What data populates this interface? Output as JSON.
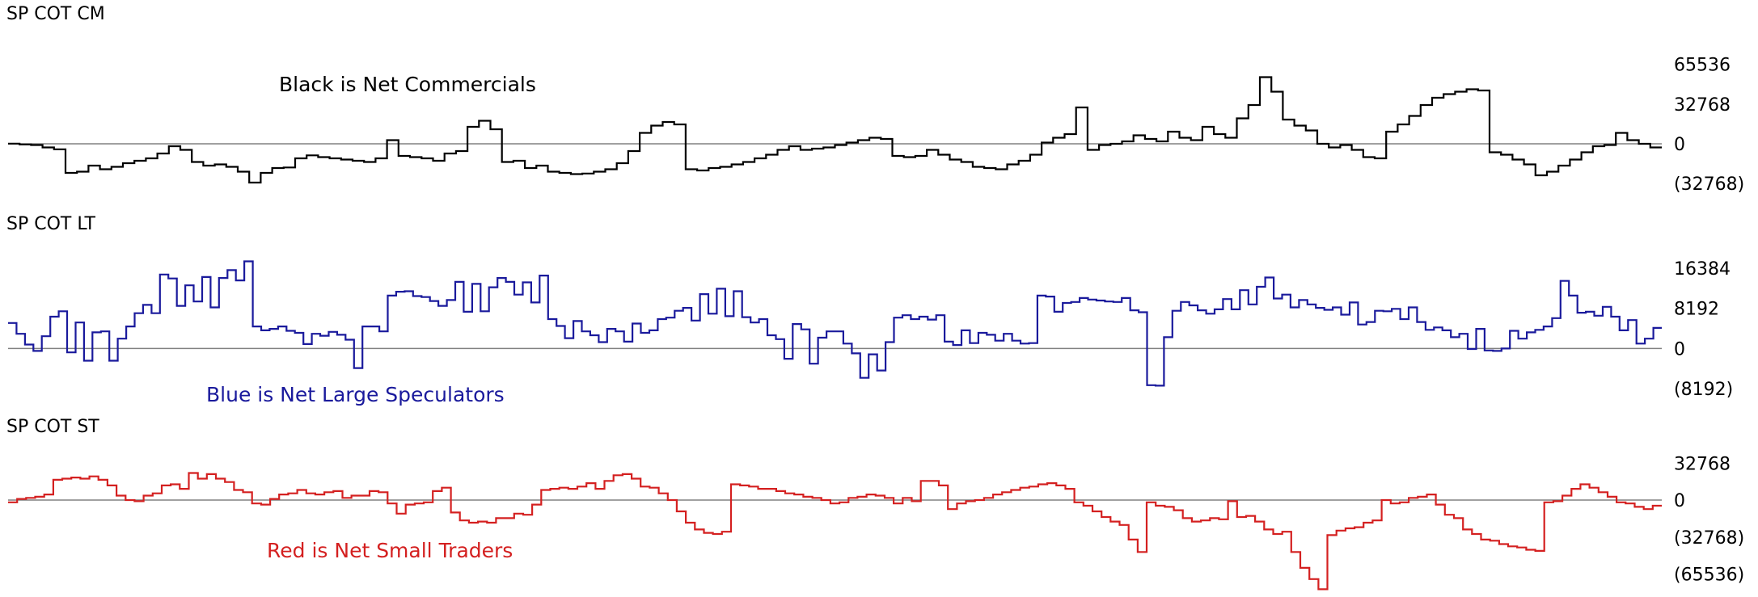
{
  "chart_data": [
    {
      "type": "line",
      "style": "step",
      "title": "SP COT CM",
      "annotation": "Black is Net Commercials",
      "color": "#000000",
      "ylim": [
        -38000,
        92000
      ],
      "y_ticks": [
        {
          "value": 65536,
          "label": "65536"
        },
        {
          "value": 32768,
          "label": "32768"
        },
        {
          "value": 0,
          "label": "0"
        },
        {
          "value": -32768,
          "label": "(32768)"
        }
      ],
      "series": [
        {
          "values": [
            100,
            -500,
            -1000,
            -3000,
            -4500,
            -24000,
            -23000,
            -18000,
            -21000,
            -19000,
            -16000,
            -14000,
            -12000,
            -8000,
            -2000,
            -5000,
            -15000,
            -18000,
            -17000,
            -19000,
            -23000,
            -32000,
            -24000,
            -20000,
            -19500,
            -12000,
            -9500,
            -11000,
            -12000,
            -13000,
            -14000,
            -15000,
            -12000,
            3000,
            -10000,
            -11000,
            -12000,
            -14000,
            -8000,
            -6000,
            14000,
            19000,
            12000,
            -15000,
            -14000,
            -20000,
            -18000,
            -23000,
            -24000,
            -25000,
            -24500,
            -23000,
            -21000,
            -16000,
            -6000,
            9000,
            15000,
            18000,
            16000,
            -21000,
            -22000,
            -20000,
            -19000,
            -17000,
            -15000,
            -12000,
            -9000,
            -5000,
            -2000,
            -5000,
            -4000,
            -3000,
            -1000,
            1000,
            3000,
            5000,
            4000,
            -10000,
            -11000,
            -10000,
            -5000,
            -9000,
            -13000,
            -15000,
            -19000,
            -20000,
            -21000,
            -17000,
            -14000,
            -9000,
            1000,
            5000,
            8000,
            30000,
            -5000,
            -1000,
            0,
            2000,
            7000,
            4000,
            2000,
            10000,
            5000,
            3000,
            14000,
            8000,
            5000,
            21000,
            32000,
            55000,
            43000,
            20000,
            15000,
            11000,
            0,
            -3000,
            -1000,
            -5000,
            -11000,
            -12000,
            10000,
            16000,
            23000,
            32000,
            38000,
            41000,
            43000,
            45000,
            44000,
            -7000,
            -9000,
            -13000,
            -17000,
            -26000,
            -23000,
            -18000,
            -13000,
            -7000,
            -2000,
            -1000,
            9000,
            3000,
            0,
            -3000
          ]
        }
      ]
    },
    {
      "type": "line",
      "style": "step",
      "title": "SP COT LT",
      "annotation": "Blue is Net Large Speculators",
      "color": "#1a1a9c",
      "ylim": [
        -10500,
        22500
      ],
      "y_ticks": [
        {
          "value": 16384,
          "label": "16384"
        },
        {
          "value": 8192,
          "label": "8192"
        },
        {
          "value": 0,
          "label": "0"
        },
        {
          "value": -8192,
          "label": "(8192)"
        }
      ],
      "series": [
        {
          "values": [
            5200,
            3000,
            800,
            -500,
            2500,
            6500,
            7600,
            -800,
            5300,
            -2500,
            3300,
            3500,
            -2500,
            2000,
            4500,
            7200,
            8900,
            7200,
            15100,
            14300,
            8700,
            12900,
            9600,
            14600,
            8400,
            14400,
            16000,
            13900,
            17800,
            4500,
            3700,
            4000,
            4500,
            3600,
            3200,
            900,
            3000,
            2600,
            3400,
            2800,
            1800,
            -4000,
            4500,
            4500,
            3500,
            10800,
            11600,
            11700,
            10700,
            10500,
            9700,
            8700,
            9900,
            13600,
            7500,
            13200,
            7600,
            12500,
            14400,
            13600,
            11000,
            13500,
            9400,
            14900,
            6000,
            4600,
            2100,
            5600,
            3500,
            2700,
            1300,
            4000,
            3500,
            1400,
            5100,
            3200,
            3700,
            6000,
            6300,
            7700,
            8300,
            5700,
            11100,
            7100,
            12200,
            6600,
            11700,
            6400,
            5300,
            6000,
            2700,
            1900,
            -2100,
            5000,
            3900,
            -3100,
            2200,
            3500,
            3500,
            1000,
            -1000,
            -6000,
            -1200,
            -4500,
            1300,
            6300,
            6800,
            6000,
            6500,
            5900,
            6800,
            1400,
            700,
            3700,
            1100,
            3200,
            2800,
            1600,
            3000,
            1600,
            1000,
            1100,
            10800,
            10600,
            7500,
            9300,
            9500,
            10300,
            10000,
            9800,
            9600,
            9500,
            10300,
            7800,
            7400,
            -7500,
            -7600,
            2300,
            7700,
            9500,
            8800,
            7800,
            7100,
            8000,
            10100,
            8000,
            11900,
            9000,
            12600,
            14500,
            10200,
            11000,
            8400,
            9900,
            9000,
            8300,
            7900,
            8400,
            6900,
            9400,
            4900,
            5400,
            7700,
            7600,
            8100,
            6000,
            8400,
            5400,
            3800,
            4300,
            3700,
            2300,
            3000,
            -100,
            4000,
            -400,
            -500,
            0,
            3600,
            2000,
            3300,
            3800,
            4500,
            6200,
            13800,
            10800,
            7300,
            7500,
            6700,
            8500,
            6500,
            3700,
            5800,
            1000,
            2000,
            4200
          ]
        }
      ]
    },
    {
      "type": "line",
      "style": "step",
      "title": "SP COT ST",
      "annotation": "Red is Net Small Traders",
      "color": "#d42020",
      "ylim": [
        -83000,
        53000
      ],
      "y_ticks": [
        {
          "value": 32768,
          "label": "32768"
        },
        {
          "value": 0,
          "label": "0"
        },
        {
          "value": -32768,
          "label": "(32768)"
        },
        {
          "value": -65536,
          "label": "(65536)"
        }
      ],
      "series": [
        {
          "values": [
            -2000,
            1000,
            2000,
            3000,
            5000,
            18000,
            19000,
            20000,
            19000,
            21000,
            18000,
            13000,
            4000,
            0,
            -1000,
            4000,
            6000,
            13000,
            14000,
            10000,
            24000,
            19000,
            23000,
            19000,
            16000,
            9000,
            7000,
            -3000,
            -4000,
            1000,
            5000,
            6000,
            9000,
            6000,
            5000,
            7000,
            8000,
            2000,
            4000,
            4000,
            8000,
            7000,
            -3000,
            -12000,
            -4000,
            -3000,
            -2000,
            8000,
            11000,
            -11000,
            -18000,
            -20000,
            -19000,
            -20000,
            -16000,
            -16000,
            -12000,
            -13000,
            -4000,
            9000,
            10000,
            11000,
            10000,
            12000,
            15000,
            10000,
            17000,
            22000,
            23000,
            19000,
            12000,
            11000,
            6000,
            0,
            -10000,
            -20000,
            -26000,
            -29000,
            -30000,
            -28000,
            14000,
            13000,
            12000,
            10000,
            10000,
            8000,
            6000,
            5000,
            3000,
            2000,
            0,
            -3000,
            -2000,
            2000,
            3000,
            5000,
            4000,
            2000,
            -3000,
            2000,
            -1000,
            17000,
            17000,
            13000,
            -8000,
            -3000,
            -1000,
            0,
            2000,
            5000,
            7000,
            9000,
            11000,
            12000,
            14000,
            15000,
            13000,
            10000,
            -2000,
            -5000,
            -10000,
            -15000,
            -19000,
            -22000,
            -35000,
            -46000,
            -2000,
            -5000,
            -6000,
            -9000,
            -16000,
            -19000,
            -18000,
            -16000,
            -17000,
            -1000,
            -15000,
            -14000,
            -19000,
            -26000,
            -30000,
            -28000,
            -46000,
            -60000,
            -70000,
            -79000,
            -31000,
            -27000,
            -25000,
            -24000,
            -20000,
            -18000,
            0,
            -3000,
            -2000,
            2000,
            3000,
            5000,
            -4000,
            -13000,
            -16000,
            -26000,
            -30000,
            -35000,
            -36000,
            -39000,
            -41000,
            -42000,
            -44000,
            -45000,
            -2000,
            -1000,
            4000,
            10000,
            14000,
            11000,
            7000,
            3000,
            -2000,
            -3000,
            -6000,
            -8000,
            -5000
          ]
        }
      ]
    }
  ]
}
